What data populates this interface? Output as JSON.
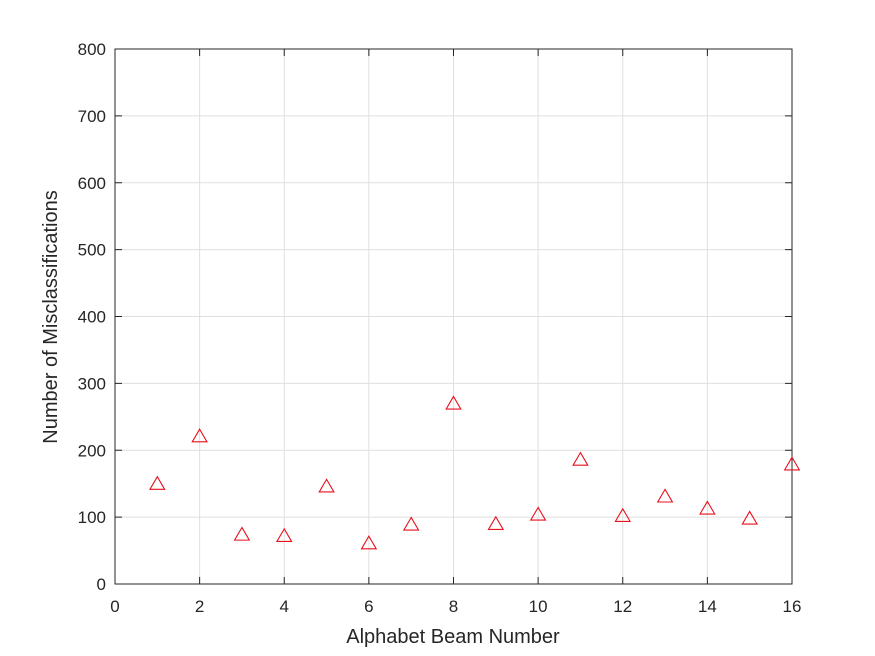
{
  "chart_data": {
    "type": "scatter",
    "title": "",
    "xlabel": "Alphabet Beam Number",
    "ylabel": "Number of Misclassifications",
    "xlim": [
      0,
      16
    ],
    "ylim": [
      0,
      800
    ],
    "xticks": [
      0,
      2,
      4,
      6,
      8,
      10,
      12,
      14,
      16
    ],
    "yticks": [
      0,
      100,
      200,
      300,
      400,
      500,
      600,
      700,
      800
    ],
    "grid": true,
    "marker": "triangle-open",
    "marker_color": "#e8111c",
    "series": [
      {
        "x": [
          1,
          2,
          3,
          4,
          5,
          6,
          7,
          8,
          9,
          10,
          11,
          12,
          13,
          14,
          15,
          16
        ],
        "values": [
          150,
          221,
          74,
          72,
          146,
          61,
          89,
          270,
          90,
          104,
          186,
          102,
          131,
          113,
          98,
          179
        ]
      }
    ]
  }
}
